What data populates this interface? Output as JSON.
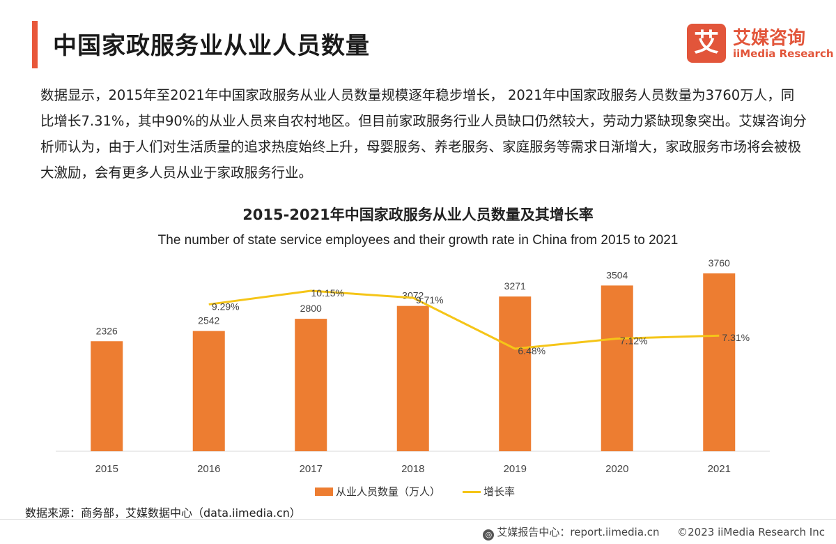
{
  "header": {
    "title": "中国家政服务业从业人员数量"
  },
  "logo": {
    "mark": "艾",
    "name_cn": "艾媒咨询",
    "name_en": "iiMedia Research"
  },
  "intro_text": "数据显示，2015年至2021年中国家政服务从业人员数量规模逐年稳步增长， 2021年中国家政服务人员数量为3760万人，同比增长7.31%，其中90%的从业人员来自农村地区。但目前家政服务行业人员缺口仍然较大，劳动力紧缺现象突出。艾媒咨询分析师认为，由于人们对生活质量的追求热度始终上升，母婴服务、养老服务、家庭服务等需求日渐增大，家政服务市场将会被极大激励，会有更多人员从业于家政服务行业。",
  "source": "数据来源：商务部，艾媒数据中心（data.iimedia.cn）",
  "footer": {
    "report": "艾媒报告中心：report.iimedia.cn",
    "copyright": "©2023  iiMedia Research  Inc"
  },
  "colors": {
    "accent": "#e8573a",
    "bar": "#ed7d31",
    "line": "#f5c518"
  },
  "chart_data": {
    "type": "bar",
    "title": "2015-2021年中国家政服务从业人员数量及其增长率",
    "subtitle": "The number of state service employees and their growth rate in China from 2015 to 2021",
    "categories": [
      "2015",
      "2016",
      "2017",
      "2018",
      "2019",
      "2020",
      "2021"
    ],
    "series": [
      {
        "name": "从业人员数量（万人）",
        "type": "bar",
        "values": [
          2326,
          2542,
          2800,
          3072,
          3271,
          3504,
          3760
        ],
        "labels": [
          "2326",
          "2542",
          "2800",
          "3072",
          "3271",
          "3504",
          "3760"
        ]
      },
      {
        "name": "增长率",
        "type": "line",
        "values": [
          null,
          9.29,
          10.15,
          9.71,
          6.48,
          7.12,
          7.31
        ],
        "labels": [
          "",
          "9.29%",
          "10.15%",
          "9.71%",
          "6.48%",
          "7.12%",
          "7.31%"
        ]
      }
    ],
    "legend_position": "bottom",
    "grid": false
  }
}
